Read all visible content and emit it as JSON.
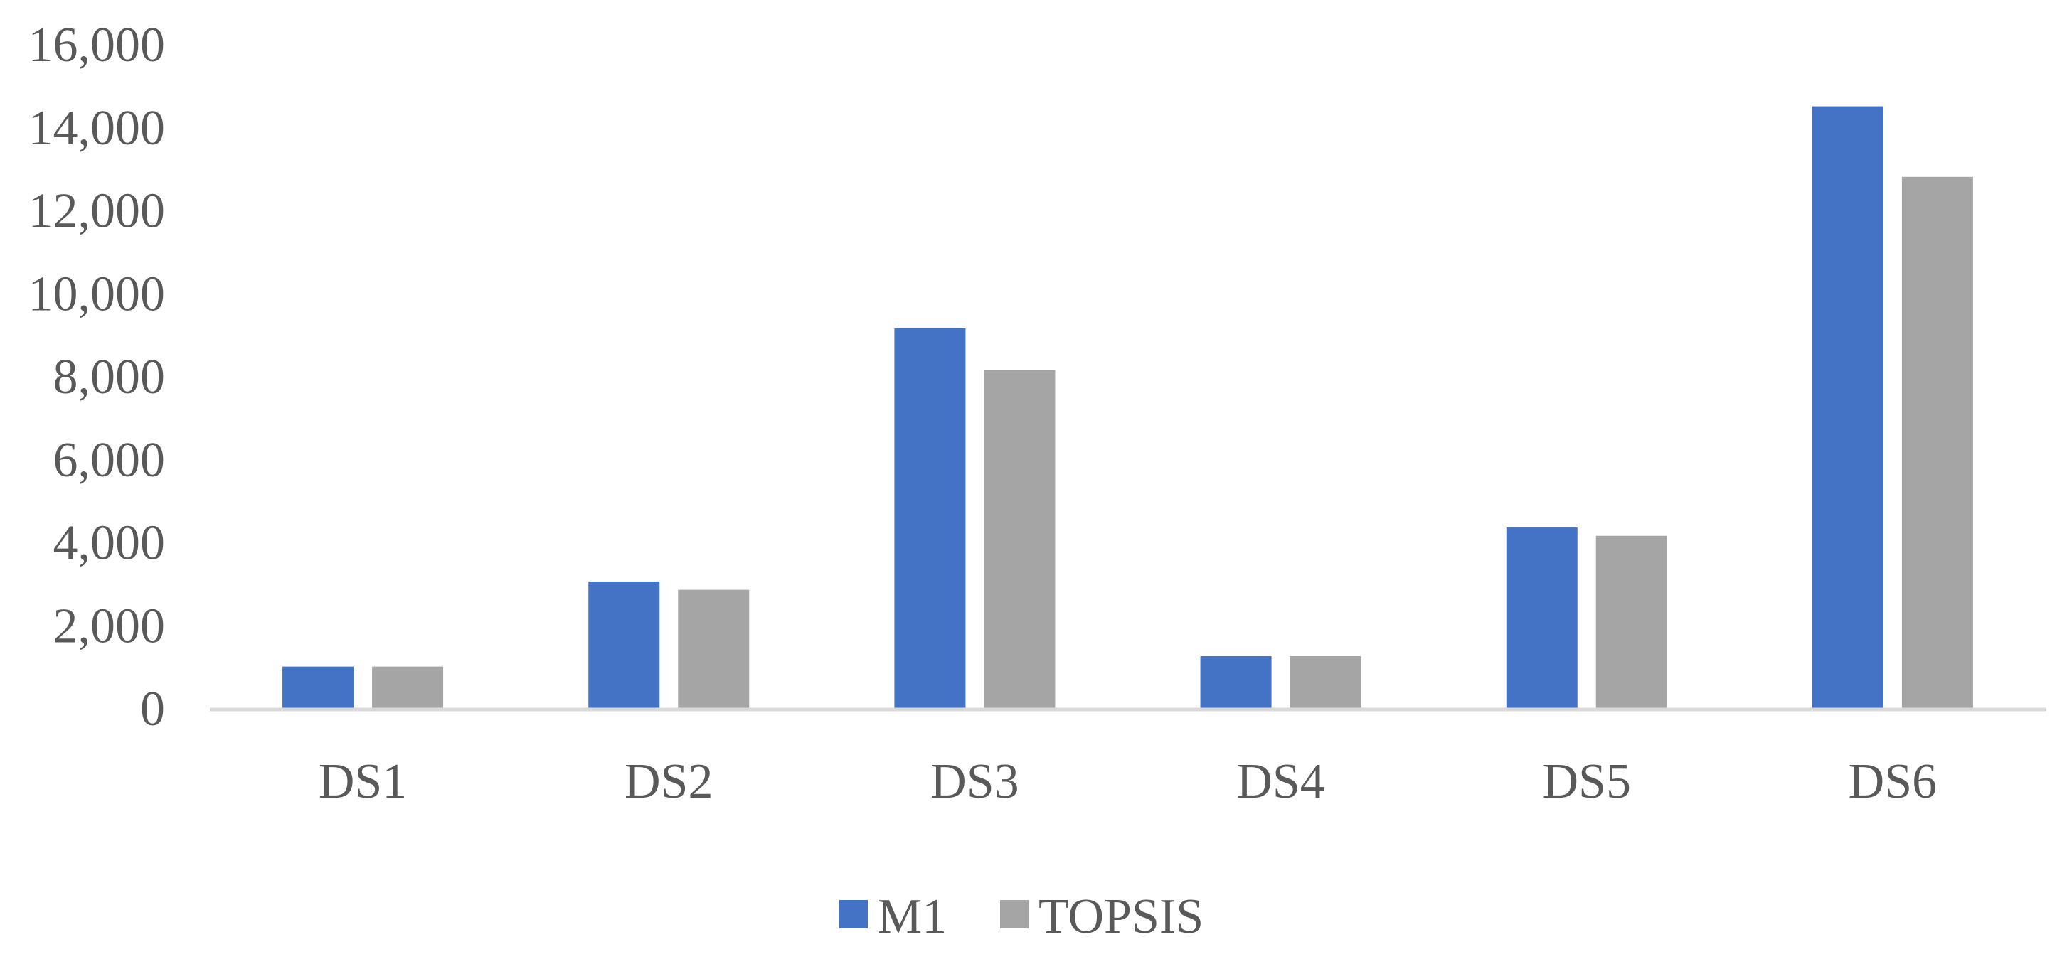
{
  "chart_data": {
    "type": "bar",
    "title": "",
    "xlabel": "",
    "ylabel": "",
    "categories": [
      "DS1",
      "DS2",
      "DS3",
      "DS4",
      "DS5",
      "DS6"
    ],
    "series": [
      {
        "name": "M1",
        "color": "#4472C4",
        "values": [
          1000,
          3050,
          9150,
          1250,
          4350,
          14500
        ]
      },
      {
        "name": "TOPSIS",
        "color": "#A5A5A5",
        "values": [
          1000,
          2850,
          8150,
          1250,
          4150,
          12800
        ]
      }
    ],
    "ylim": [
      0,
      16000
    ],
    "yticks": [
      0,
      2000,
      4000,
      6000,
      8000,
      10000,
      12000,
      14000,
      16000
    ],
    "ytick_labels": [
      "0",
      "2,000",
      "4,000",
      "6,000",
      "8,000",
      "10,000",
      "12,000",
      "14,000",
      "16,000"
    ],
    "grid": false,
    "legend": "bottom-center",
    "axis_color": "#D9D9D9"
  }
}
